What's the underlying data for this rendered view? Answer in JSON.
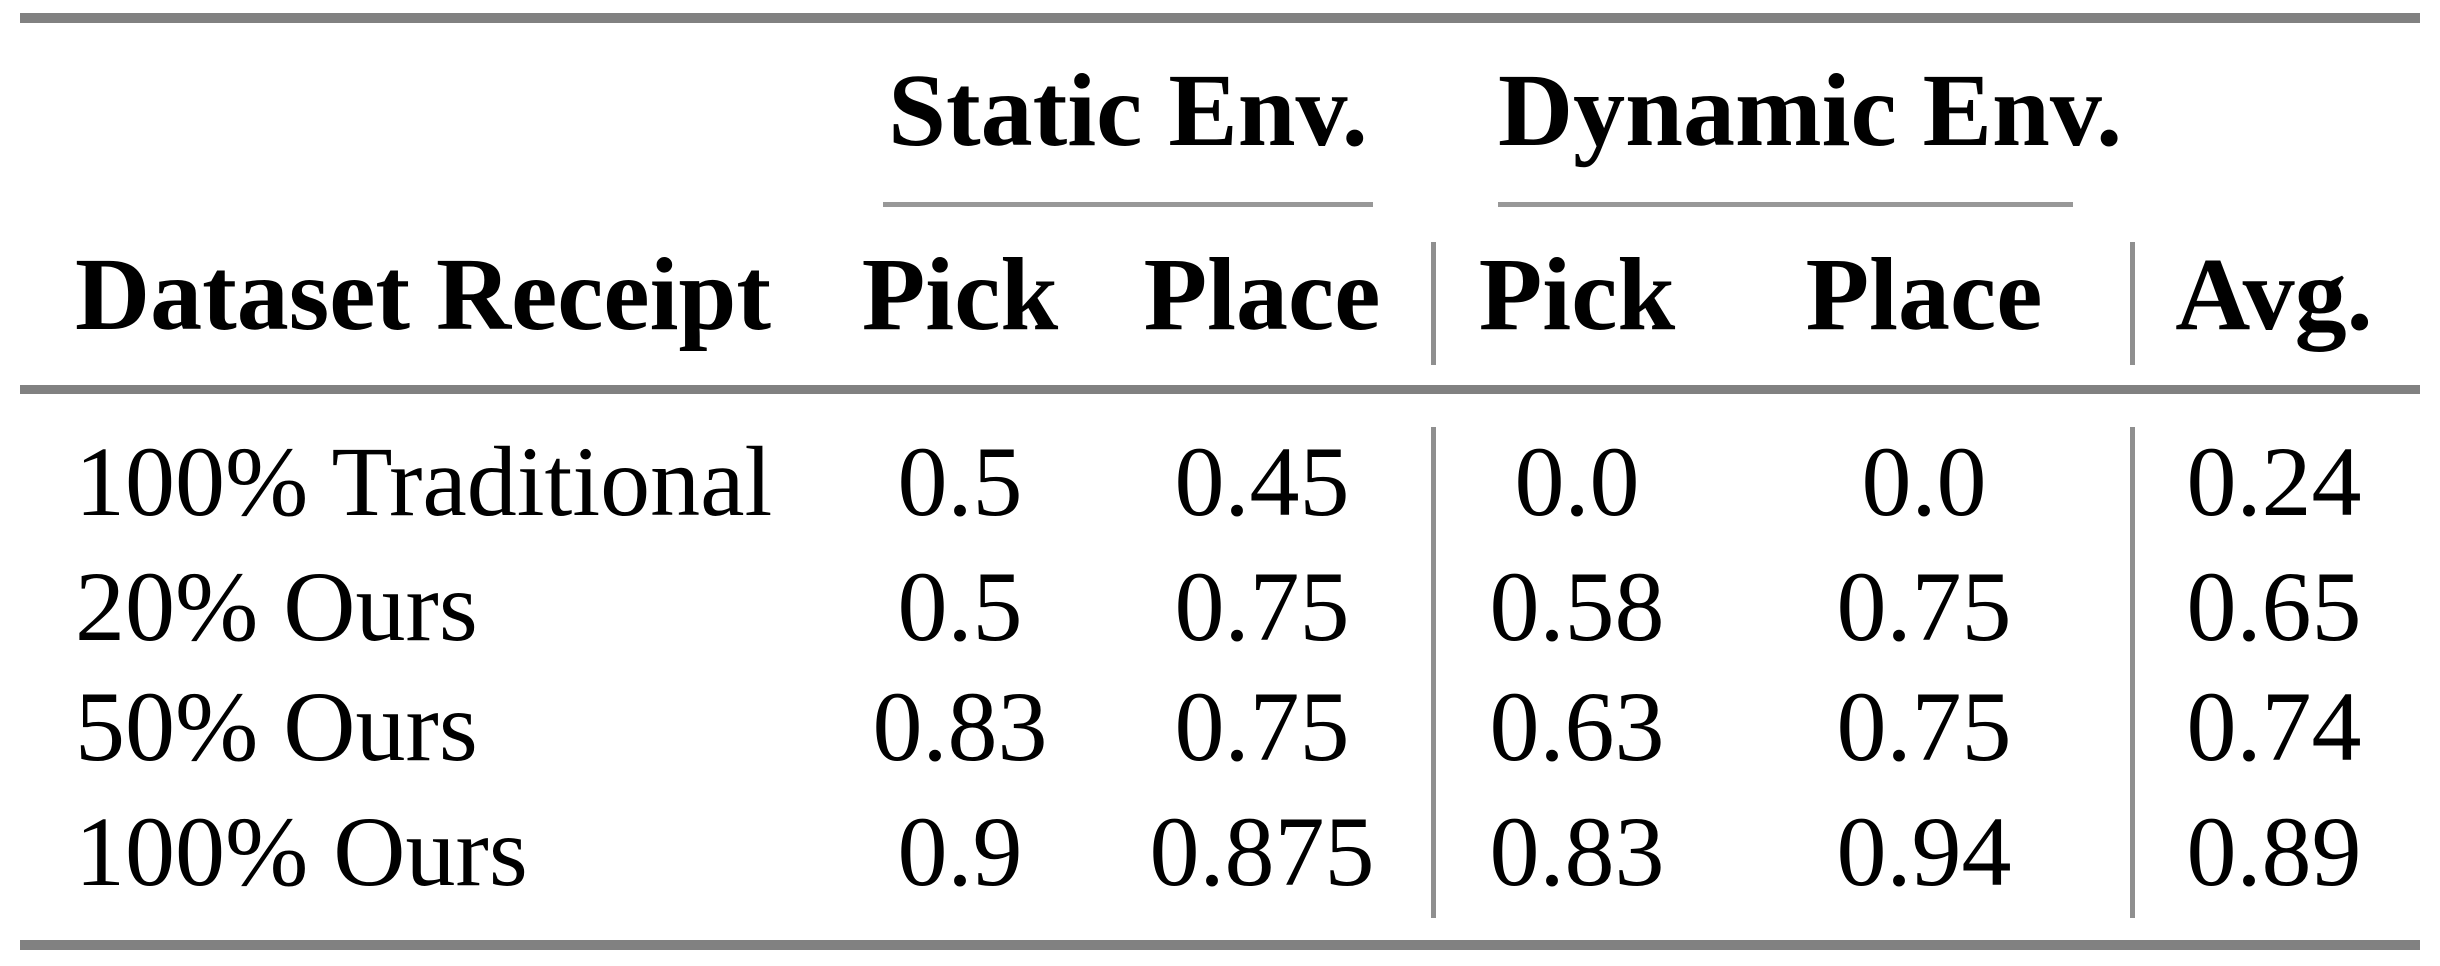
{
  "table": {
    "column_groups": {
      "static": {
        "label": "Static Env."
      },
      "dynamic": {
        "label": "Dynamic Env."
      }
    },
    "header": {
      "row_label": "Dataset Receipt",
      "static_pick": "Pick",
      "static_place": "Place",
      "dynamic_pick": "Pick",
      "dynamic_place": "Place",
      "avg": "Avg."
    },
    "rows": [
      {
        "label": "100% Traditional",
        "static_pick": "0.5",
        "static_place": "0.45",
        "dynamic_pick": "0.0",
        "dynamic_place": "0.0",
        "avg": "0.24"
      },
      {
        "label": "20% Ours",
        "static_pick": "0.5",
        "static_place": "0.75",
        "dynamic_pick": "0.58",
        "dynamic_place": "0.75",
        "avg": "0.65"
      },
      {
        "label": "50% Ours",
        "static_pick": "0.83",
        "static_place": "0.75",
        "dynamic_pick": "0.63",
        "dynamic_place": "0.75",
        "avg": "0.74"
      },
      {
        "label": "100% Ours",
        "static_pick": "0.9",
        "static_place": "0.875",
        "dynamic_pick": "0.83",
        "dynamic_place": "0.94",
        "avg": "0.89"
      }
    ],
    "colors": {
      "rule_thick": "#818181",
      "rule_thin": "#989898",
      "text": "#000000",
      "background": "#ffffff"
    }
  },
  "chart_data": {
    "type": "table",
    "title": "",
    "columns": [
      "Dataset Receipt",
      "Static Env. Pick",
      "Static Env. Place",
      "Dynamic Env. Pick",
      "Dynamic Env. Place",
      "Avg."
    ],
    "rows": [
      [
        "100% Traditional",
        0.5,
        0.45,
        0.0,
        0.0,
        0.24
      ],
      [
        "20% Ours",
        0.5,
        0.75,
        0.58,
        0.75,
        0.65
      ],
      [
        "50% Ours",
        0.83,
        0.75,
        0.63,
        0.75,
        0.74
      ],
      [
        "100% Ours",
        0.9,
        0.875,
        0.83,
        0.94,
        0.89
      ]
    ]
  }
}
